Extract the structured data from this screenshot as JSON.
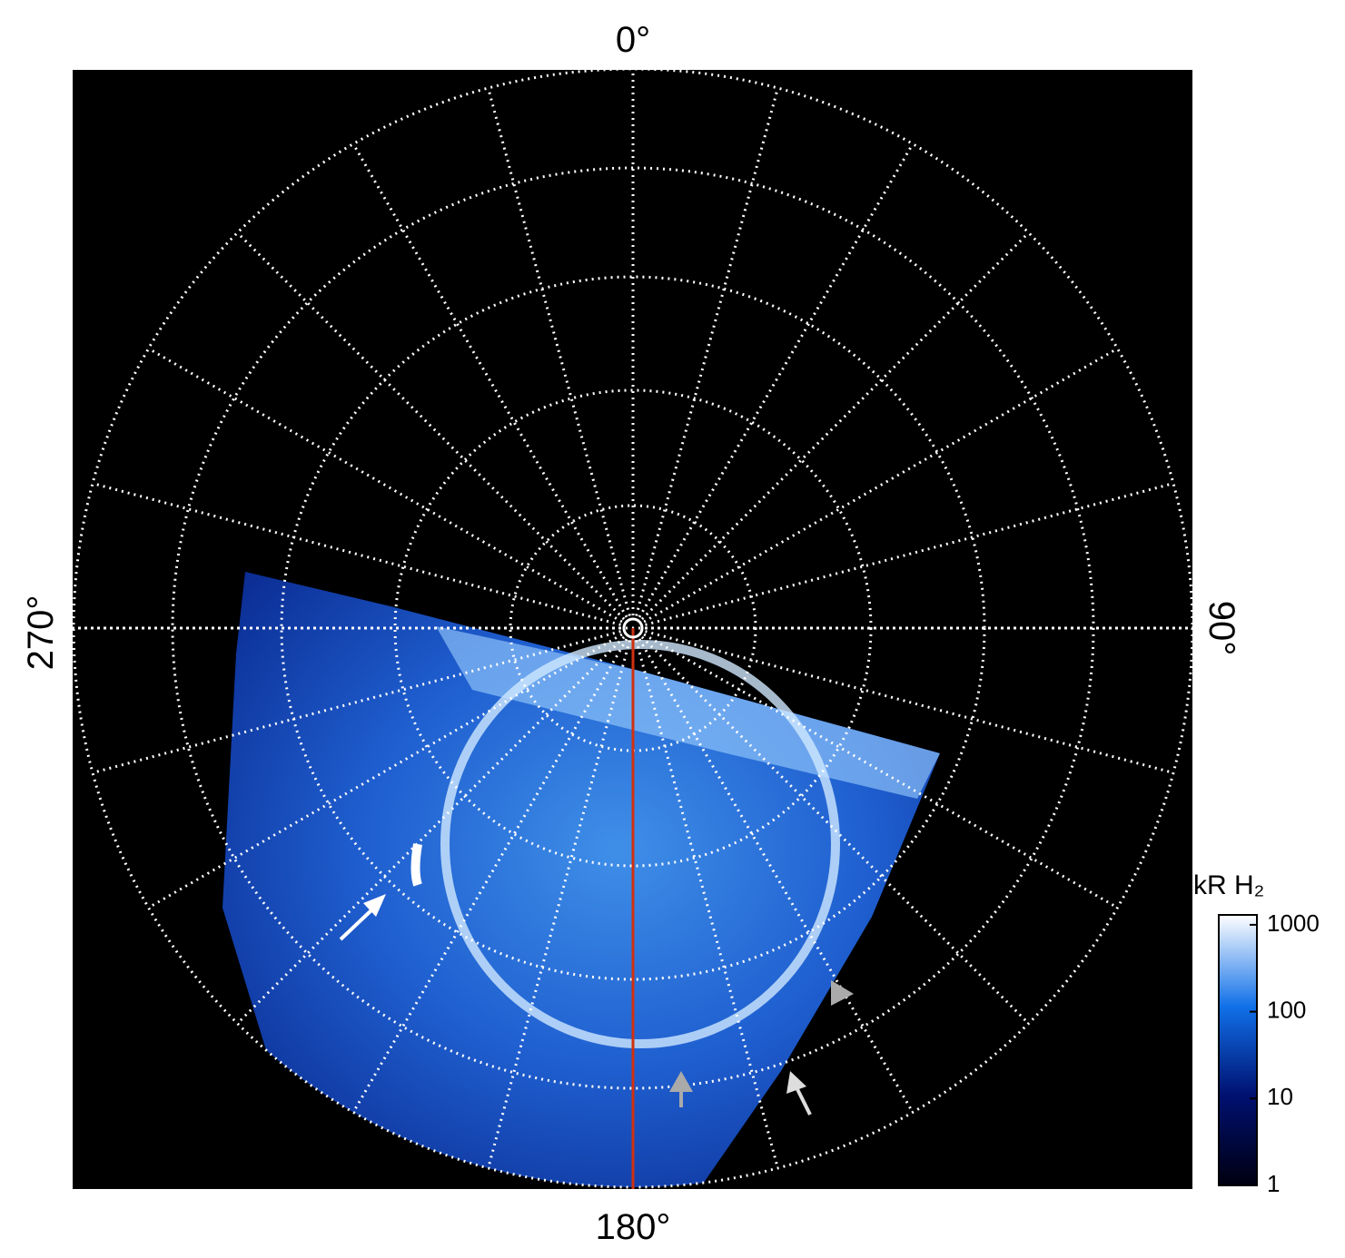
{
  "labels": {
    "top": "0°",
    "right": "90°",
    "bottom": "180°",
    "left": "270°"
  },
  "colorbar": {
    "title": "kR H₂",
    "log": true,
    "lim": [
      1,
      1300
    ],
    "ticks": [
      1,
      10,
      100,
      1000
    ]
  }
}
